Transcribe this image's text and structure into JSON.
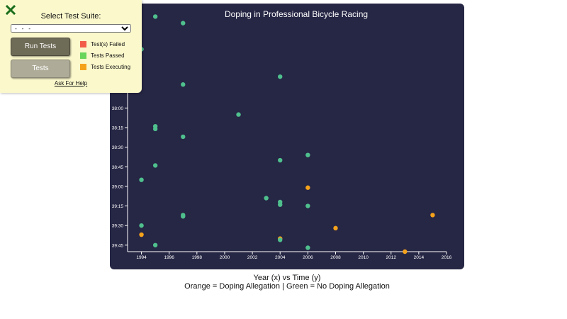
{
  "test_panel": {
    "suite_label": "Select Test Suite:",
    "suite_selected": "- - -",
    "run_button": "Run Tests",
    "tests_button": "Tests",
    "legend": [
      {
        "label": "Test(s) Failed",
        "color": "#f25d4a"
      },
      {
        "label": "Tests Passed",
        "color": "#6bd45a"
      },
      {
        "label": "Tests Executing",
        "color": "#f5a21b"
      }
    ],
    "help_link": "Ask For Help",
    "close_icon": "close-icon"
  },
  "captions": {
    "line1": "Year (x) vs Time (y)",
    "line2": "Orange = Doping Allegation | Green = No Doping Allegation"
  },
  "chart_data": {
    "type": "scatter",
    "title": "Doping in Professional Bicycle Racing",
    "xlabel": "",
    "ylabel": "",
    "xlim": [
      1993,
      2016
    ],
    "ylim_seconds": [
      2200,
      2390
    ],
    "x_ticks": [
      1994,
      1996,
      1998,
      2000,
      2002,
      2004,
      2006,
      2008,
      2010,
      2012,
      2014,
      2016
    ],
    "y_ticks": [
      {
        "label": "38:00",
        "seconds": 2280
      },
      {
        "label": "38:15",
        "seconds": 2295
      },
      {
        "label": "38:30",
        "seconds": 2310
      },
      {
        "label": "38:45",
        "seconds": 2325
      },
      {
        "label": "39:00",
        "seconds": 2340
      },
      {
        "label": "39:15",
        "seconds": 2355
      },
      {
        "label": "39:30",
        "seconds": 2370
      },
      {
        "label": "39:45",
        "seconds": 2385
      }
    ],
    "colors": {
      "doping": "#f5a21b",
      "clean": "#4fc08d"
    },
    "points": [
      {
        "year": 1995,
        "seconds": 2210,
        "doping": false
      },
      {
        "year": 1997,
        "seconds": 2215,
        "doping": false
      },
      {
        "year": 1994,
        "seconds": 2235,
        "doping": false
      },
      {
        "year": 2004,
        "seconds": 2256,
        "doping": false
      },
      {
        "year": 1997,
        "seconds": 2262,
        "doping": false
      },
      {
        "year": 2001,
        "seconds": 2285,
        "doping": false
      },
      {
        "year": 1995,
        "seconds": 2294,
        "doping": false
      },
      {
        "year": 1995,
        "seconds": 2296,
        "doping": false
      },
      {
        "year": 1997,
        "seconds": 2302,
        "doping": false
      },
      {
        "year": 2006,
        "seconds": 2316,
        "doping": false
      },
      {
        "year": 2004,
        "seconds": 2320,
        "doping": false
      },
      {
        "year": 1995,
        "seconds": 2324,
        "doping": false
      },
      {
        "year": 1994,
        "seconds": 2335,
        "doping": false
      },
      {
        "year": 2006,
        "seconds": 2341,
        "doping": true
      },
      {
        "year": 2003,
        "seconds": 2349,
        "doping": false
      },
      {
        "year": 2004,
        "seconds": 2352,
        "doping": false
      },
      {
        "year": 2004,
        "seconds": 2354,
        "doping": false
      },
      {
        "year": 2006,
        "seconds": 2355,
        "doping": false
      },
      {
        "year": 1997,
        "seconds": 2362,
        "doping": false
      },
      {
        "year": 1997,
        "seconds": 2363,
        "doping": false
      },
      {
        "year": 2015,
        "seconds": 2362,
        "doping": true
      },
      {
        "year": 1994,
        "seconds": 2370,
        "doping": false
      },
      {
        "year": 2008,
        "seconds": 2372,
        "doping": true
      },
      {
        "year": 1994,
        "seconds": 2377,
        "doping": true
      },
      {
        "year": 2004,
        "seconds": 2380,
        "doping": true
      },
      {
        "year": 2004,
        "seconds": 2381,
        "doping": false
      },
      {
        "year": 1995,
        "seconds": 2385,
        "doping": false
      },
      {
        "year": 2006,
        "seconds": 2387,
        "doping": false
      },
      {
        "year": 2013,
        "seconds": 2390,
        "doping": true
      }
    ]
  }
}
